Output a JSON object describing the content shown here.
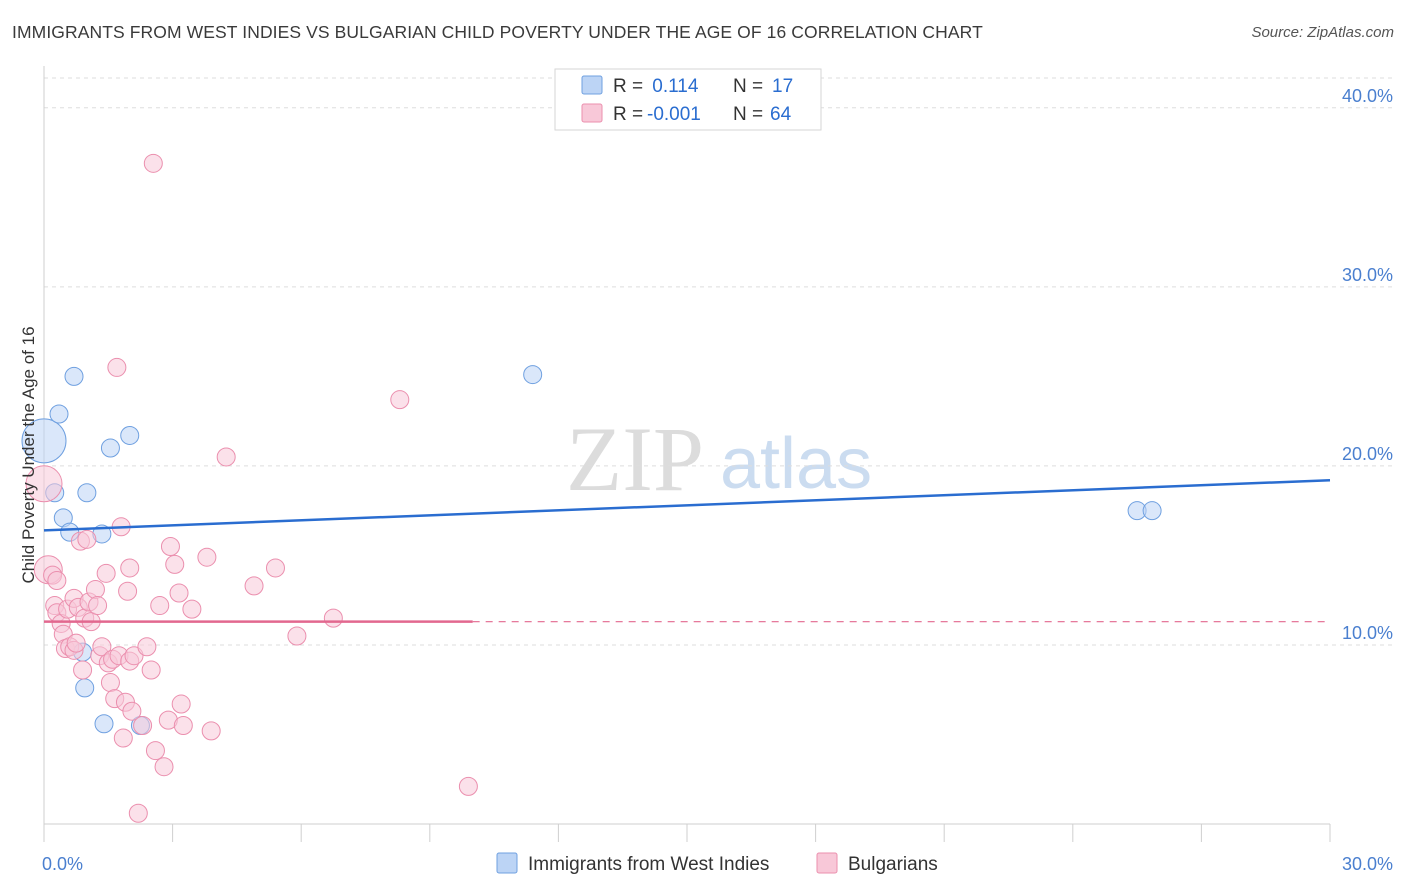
{
  "chart_data": {
    "type": "scatter",
    "title": "IMMIGRANTS FROM WEST INDIES VS BULGARIAN CHILD POVERTY UNDER THE AGE OF 16 CORRELATION CHART",
    "source": "Source: ZipAtlas.com",
    "ylabel": "Child Poverty Under the Age of 16",
    "xlabel": "",
    "xlim": [
      0,
      30
    ],
    "ylim": [
      0,
      42
    ],
    "x_tick_labels": {
      "min": "0.0%",
      "max": "30.0%"
    },
    "y_ticks": [
      {
        "value": 10,
        "label": "10.0%"
      },
      {
        "value": 20,
        "label": "20.0%"
      },
      {
        "value": 30,
        "label": "30.0%"
      },
      {
        "value": 40,
        "label": "40.0%"
      }
    ],
    "watermark": {
      "zip": "ZIP",
      "atlas": "atlas"
    },
    "legend_top": [
      {
        "series": "west_indies",
        "r_label": "R = ",
        "r_value": " 0.114",
        "n_label": "N = ",
        "n_value": "17"
      },
      {
        "series": "bulgarians",
        "r_label": "R = ",
        "r_value": "-0.001",
        "n_label": "N = ",
        "n_value": "64"
      }
    ],
    "series": [
      {
        "id": "west_indies",
        "name": "Immigrants from West Indies",
        "color": "#6fa0e0",
        "fill": "#bcd4f5",
        "line_color": "#2a6dd0",
        "trend": {
          "x0": 0,
          "y0": 16.4,
          "x1": 30,
          "y1": 19.2,
          "dashed_from": null
        },
        "points": [
          [
            0.0,
            21.4,
            22
          ],
          [
            0.35,
            22.9,
            9
          ],
          [
            0.7,
            25.0,
            9
          ],
          [
            0.25,
            18.5,
            9
          ],
          [
            1.0,
            18.5,
            9
          ],
          [
            0.45,
            17.1,
            9
          ],
          [
            0.6,
            16.3,
            9
          ],
          [
            1.35,
            16.2,
            9
          ],
          [
            1.55,
            21.0,
            9
          ],
          [
            2.0,
            21.7,
            9
          ],
          [
            11.4,
            25.1,
            9
          ],
          [
            25.5,
            17.5,
            9
          ],
          [
            25.85,
            17.5,
            9
          ],
          [
            0.9,
            9.6,
            9
          ],
          [
            0.95,
            7.6,
            9
          ],
          [
            1.4,
            5.6,
            9
          ],
          [
            2.25,
            5.5,
            9
          ]
        ]
      },
      {
        "id": "bulgarians",
        "name": "Bulgarians",
        "color": "#eb8fae",
        "fill": "#f8c8d8",
        "line_color": "#e2688f",
        "trend": {
          "x0": 0,
          "y0": 11.3,
          "x1": 30,
          "y1": 11.3,
          "dashed_from": 10
        },
        "points": [
          [
            0.0,
            19.0,
            18
          ],
          [
            0.1,
            14.2,
            14
          ],
          [
            0.2,
            13.9,
            9
          ],
          [
            0.25,
            12.2,
            9
          ],
          [
            0.3,
            11.8,
            9
          ],
          [
            0.4,
            11.2,
            9
          ],
          [
            0.45,
            10.6,
            9
          ],
          [
            0.5,
            9.8,
            9
          ],
          [
            0.55,
            12.0,
            9
          ],
          [
            0.6,
            9.9,
            9
          ],
          [
            0.7,
            9.7,
            9
          ],
          [
            0.75,
            10.1,
            9
          ],
          [
            0.7,
            12.6,
            9
          ],
          [
            0.8,
            12.1,
            9
          ],
          [
            0.85,
            15.8,
            9
          ],
          [
            0.9,
            8.6,
            9
          ],
          [
            0.95,
            11.5,
            9
          ],
          [
            1.0,
            15.9,
            9
          ],
          [
            1.1,
            11.3,
            9
          ],
          [
            1.05,
            12.4,
            9
          ],
          [
            1.2,
            13.1,
            9
          ],
          [
            1.25,
            12.2,
            9
          ],
          [
            1.3,
            9.4,
            9
          ],
          [
            1.35,
            9.9,
            9
          ],
          [
            1.45,
            14.0,
            9
          ],
          [
            1.5,
            9.0,
            9
          ],
          [
            1.55,
            7.9,
            9
          ],
          [
            1.6,
            9.2,
            9
          ],
          [
            1.65,
            7.0,
            9
          ],
          [
            1.7,
            25.5,
            9
          ],
          [
            1.75,
            9.4,
            9
          ],
          [
            1.8,
            16.6,
            9
          ],
          [
            1.85,
            4.8,
            9
          ],
          [
            1.9,
            6.8,
            9
          ],
          [
            1.95,
            13.0,
            9
          ],
          [
            2.0,
            14.3,
            9
          ],
          [
            2.05,
            6.3,
            9
          ],
          [
            2.0,
            9.1,
            9
          ],
          [
            2.1,
            9.4,
            9
          ],
          [
            2.2,
            0.6,
            9
          ],
          [
            2.3,
            5.5,
            9
          ],
          [
            2.4,
            9.9,
            9
          ],
          [
            2.5,
            8.6,
            9
          ],
          [
            2.55,
            36.9,
            9
          ],
          [
            2.6,
            4.1,
            9
          ],
          [
            2.7,
            12.2,
            9
          ],
          [
            2.8,
            3.2,
            9
          ],
          [
            2.9,
            5.8,
            9
          ],
          [
            2.95,
            15.5,
            9
          ],
          [
            3.05,
            14.5,
            9
          ],
          [
            3.15,
            12.9,
            9
          ],
          [
            3.2,
            6.7,
            9
          ],
          [
            3.25,
            5.5,
            9
          ],
          [
            3.45,
            12.0,
            9
          ],
          [
            3.8,
            14.9,
            9
          ],
          [
            3.9,
            5.2,
            9
          ],
          [
            4.25,
            20.5,
            9
          ],
          [
            4.9,
            13.3,
            9
          ],
          [
            5.4,
            14.3,
            9
          ],
          [
            5.9,
            10.5,
            9
          ],
          [
            6.75,
            11.5,
            9
          ],
          [
            8.3,
            23.7,
            9
          ],
          [
            9.9,
            2.1,
            9
          ],
          [
            0.3,
            13.6,
            9
          ]
        ]
      }
    ]
  }
}
